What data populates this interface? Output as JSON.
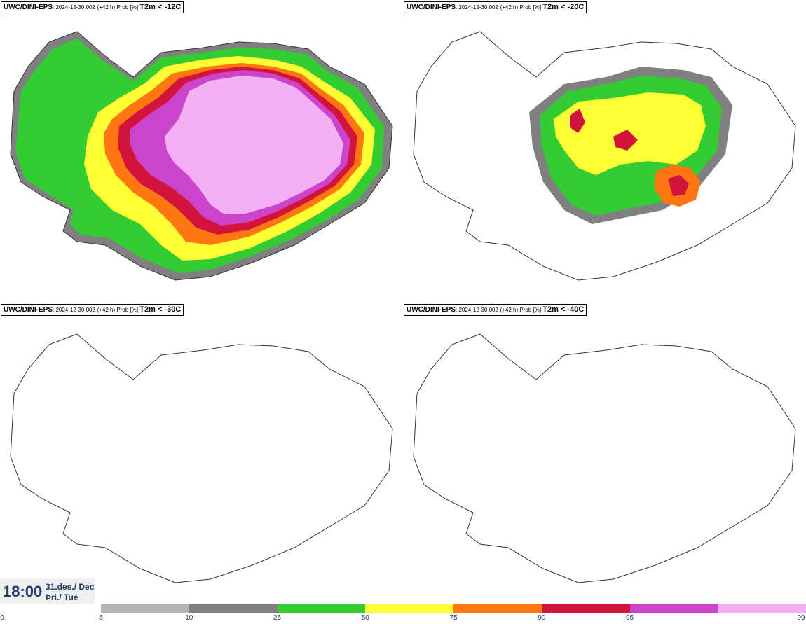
{
  "panels": [
    {
      "source": "UWC/DINI-EPS",
      "run": ": 2024-12-30 00Z (+42 h) Prob [%] ",
      "variable": "T2m < -12C"
    },
    {
      "source": "UWC/DINI-EPS",
      "run": ": 2024-12-30 00Z (+42 h) Prob [%] ",
      "variable": "T2m < -20C"
    },
    {
      "source": "UWC/DINI-EPS",
      "run": ": 2024-12-30 00Z (+42 h) Prob [%] ",
      "variable": "T2m < -30C"
    },
    {
      "source": "UWC/DINI-EPS",
      "run": ": 2024-12-30 00Z (+42 h) Prob [%] ",
      "variable": "T2m < -40C"
    }
  ],
  "valid_time": {
    "time": "18:00",
    "date_line1": "31.des./ Dec",
    "date_line2": "Þri./ Tue"
  },
  "legend": {
    "ticks": [
      "0",
      "5",
      "10",
      "25",
      "50",
      "75",
      "90",
      "95",
      "99"
    ],
    "colors": [
      "#b4b4b4",
      "#808080",
      "#33cc33",
      "#ffff33",
      "#ff7711",
      "#d2143c",
      "#cc44cc",
      "#f5b0f5"
    ]
  },
  "map_colors": {
    "pink": "#f5b0f5",
    "magenta": "#cc44cc",
    "crimson": "#d2143c",
    "orange": "#ff7711",
    "yellow": "#ffff33",
    "green": "#33cc33",
    "darkgray": "#808080",
    "coast": "#333333"
  }
}
